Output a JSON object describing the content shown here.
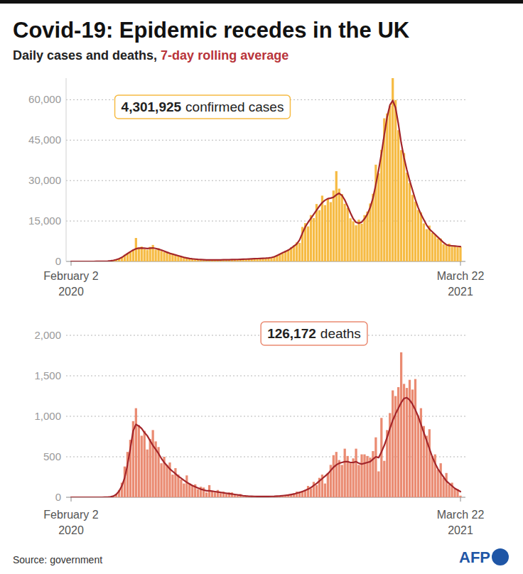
{
  "title": "Covid-19: Epidemic recedes in the UK",
  "subtitle": {
    "text": "Daily cases and deaths,",
    "highlight": "7-day rolling average"
  },
  "source": "Source: government",
  "logo": "AFP",
  "chart_data": [
    {
      "type": "bar",
      "annotation": {
        "label": "4,301,925",
        "text": "confirmed cases"
      },
      "categories": [
        "February 2\n2020",
        null,
        null,
        null,
        null,
        null,
        null,
        null,
        null,
        null,
        null,
        null,
        null,
        null,
        null,
        null,
        null,
        null,
        null,
        null,
        null,
        null,
        null,
        null,
        null,
        null,
        null,
        null,
        null,
        null,
        null,
        null,
        null,
        null,
        null,
        null,
        null,
        null,
        null,
        null,
        null,
        null,
        null,
        null,
        null,
        null,
        null,
        null,
        null,
        null,
        null,
        null,
        null,
        null,
        null,
        null,
        null,
        null,
        null,
        null,
        null,
        null,
        null,
        null,
        null,
        null,
        null,
        null,
        null,
        null,
        null,
        null,
        null,
        null,
        null,
        null,
        null,
        null,
        null,
        null,
        null,
        null,
        null,
        null,
        null,
        null,
        null,
        null,
        null,
        null,
        null,
        null,
        null,
        null,
        null,
        null,
        null,
        null,
        null,
        null,
        null,
        null,
        null,
        null,
        null,
        null,
        null,
        null,
        null,
        null,
        null,
        null,
        null,
        null,
        null,
        null,
        null,
        null,
        null,
        null,
        null,
        null,
        null,
        null,
        null,
        null,
        null,
        null,
        null,
        null,
        null,
        null,
        null,
        null,
        null,
        null,
        null,
        null,
        "March 22\n2021"
      ],
      "series": [
        {
          "type": "bar",
          "color": "#f6bb44",
          "values": [
            0,
            0,
            0,
            1,
            1,
            0,
            2,
            4,
            6,
            12,
            23,
            40,
            70,
            90,
            260,
            350,
            700,
            1100,
            1400,
            2500,
            3000,
            3700,
            4400,
            8700,
            5200,
            5500,
            4600,
            4300,
            5400,
            6100,
            4400,
            4900,
            3900,
            3500,
            3600,
            2700,
            3000,
            2300,
            2200,
            1600,
            1700,
            1200,
            1200,
            900,
            900,
            700,
            750,
            580,
            620,
            520,
            600,
            520,
            620,
            540,
            650,
            580,
            700,
            640,
            750,
            690,
            800,
            760,
            900,
            820,
            1000,
            950,
            1100,
            1000,
            1250,
            1100,
            1400,
            1300,
            1900,
            2400,
            2900,
            3000,
            4000,
            4300,
            5300,
            6000,
            7100,
            6900,
            12800,
            14200,
            13000,
            17200,
            16100,
            21300,
            19000,
            24400,
            20900,
            23200,
            22000,
            26300,
            33500,
            27000,
            25000,
            21400,
            19900,
            16000,
            14900,
            13400,
            15500,
            14000,
            17200,
            18500,
            21500,
            25100,
            35900,
            32700,
            41400,
            53100,
            54900,
            57700,
            68000,
            59900,
            48700,
            41300,
            40200,
            32900,
            29100,
            24700,
            22200,
            19100,
            18200,
            14100,
            12000,
            13300,
            10600,
            9900,
            8500,
            8500,
            6400,
            6000,
            6600,
            5500,
            5900,
            5300,
            5400
          ]
        },
        {
          "type": "line",
          "color": "#a3262b",
          "values": [
            0,
            0,
            0,
            1,
            1,
            1,
            2,
            3,
            5,
            10,
            20,
            35,
            60,
            110,
            220,
            400,
            650,
            1000,
            1500,
            2200,
            2900,
            3600,
            4200,
            4700,
            4900,
            5000,
            4900,
            4800,
            4900,
            5000,
            4800,
            4500,
            4200,
            3800,
            3400,
            3000,
            2700,
            2400,
            2100,
            1800,
            1500,
            1300,
            1100,
            950,
            850,
            750,
            680,
            620,
            580,
            560,
            550,
            560,
            570,
            580,
            600,
            620,
            650,
            680,
            700,
            730,
            760,
            800,
            850,
            900,
            950,
            1000,
            1050,
            1100,
            1150,
            1200,
            1300,
            1450,
            1700,
            2200,
            2700,
            3200,
            3700,
            4200,
            4900,
            5700,
            6500,
            8000,
            10500,
            12800,
            14500,
            16000,
            17500,
            19000,
            20500,
            21800,
            22700,
            23300,
            23500,
            23800,
            24700,
            25300,
            24500,
            22800,
            20500,
            18000,
            15800,
            14500,
            14200,
            14600,
            15800,
            17500,
            20000,
            23500,
            28500,
            34000,
            40000,
            47000,
            53500,
            58000,
            59700,
            57000,
            51000,
            44000,
            38500,
            34000,
            30000,
            26500,
            23000,
            20000,
            17500,
            15500,
            13500,
            12000,
            11000,
            10000,
            9000,
            8000,
            7000,
            6200,
            5900,
            5800,
            5700,
            5600,
            5500
          ]
        }
      ],
      "ylim": [
        0,
        68000
      ],
      "yticks": [
        0,
        {
          "value": 15000,
          "label": "15,000"
        },
        {
          "value": 30000,
          "label": "30,000"
        },
        {
          "value": 45000,
          "label": "45,000"
        },
        {
          "value": 60000,
          "label": "60,000"
        }
      ],
      "grid": true
    },
    {
      "type": "bar",
      "annotation": {
        "label": "126,172",
        "text": "deaths"
      },
      "categories": [
        "February 2\n2020",
        null,
        null,
        null,
        null,
        null,
        null,
        null,
        null,
        null,
        null,
        null,
        null,
        null,
        null,
        null,
        null,
        null,
        null,
        null,
        null,
        null,
        null,
        null,
        null,
        null,
        null,
        null,
        null,
        null,
        null,
        null,
        null,
        null,
        null,
        null,
        null,
        null,
        null,
        null,
        null,
        null,
        null,
        null,
        null,
        null,
        null,
        null,
        null,
        null,
        null,
        null,
        null,
        null,
        null,
        null,
        null,
        null,
        null,
        null,
        null,
        null,
        null,
        null,
        null,
        null,
        null,
        null,
        null,
        null,
        null,
        null,
        null,
        null,
        null,
        null,
        null,
        null,
        null,
        null,
        null,
        null,
        null,
        null,
        null,
        null,
        null,
        null,
        null,
        null,
        null,
        null,
        null,
        null,
        null,
        null,
        null,
        null,
        null,
        null,
        null,
        null,
        null,
        null,
        null,
        null,
        null,
        null,
        null,
        null,
        null,
        null,
        null,
        null,
        null,
        null,
        null,
        null,
        null,
        null,
        null,
        null,
        null,
        null,
        null,
        null,
        null,
        null,
        null,
        null,
        null,
        null,
        null,
        null,
        null,
        null,
        null,
        null,
        "March 22\n2021"
      ],
      "series": [
        {
          "type": "bar",
          "color": "#ea8b72",
          "values": [
            0,
            0,
            0,
            0,
            0,
            0,
            0,
            0,
            0,
            0,
            0,
            1,
            1,
            2,
            6,
            16,
            40,
            90,
            180,
            380,
            560,
            710,
            940,
            1100,
            890,
            760,
            820,
            590,
            720,
            830,
            690,
            620,
            420,
            500,
            400,
            430,
            280,
            360,
            280,
            220,
            170,
            270,
            170,
            150,
            160,
            100,
            130,
            120,
            60,
            150,
            70,
            60,
            90,
            50,
            70,
            40,
            60,
            60,
            30,
            20,
            40,
            15,
            20,
            10,
            14,
            8,
            12,
            10,
            6,
            14,
            8,
            11,
            14,
            9,
            20,
            27,
            20,
            37,
            30,
            50,
            70,
            60,
            80,
            90,
            140,
            110,
            190,
            150,
            240,
            280,
            170,
            300,
            400,
            520,
            560,
            460,
            400,
            600,
            510,
            420,
            480,
            600,
            400,
            530,
            530,
            510,
            490,
            570,
            740,
            320,
            980,
            450,
            830,
            1040,
            1320,
            1250,
            1360,
            1790,
            1400,
            1350,
            1450,
            1330,
            1460,
            1010,
            1100,
            880,
            760,
            840,
            510,
            530,
            340,
            420,
            240,
            300,
            160,
            180,
            110,
            100,
            20
          ]
        },
        {
          "type": "line",
          "color": "#a3262b",
          "values": [
            0,
            0,
            0,
            0,
            0,
            0,
            0,
            0,
            0,
            0,
            0,
            0,
            1,
            2,
            5,
            14,
            35,
            75,
            140,
            240,
            400,
            600,
            820,
            900,
            880,
            850,
            800,
            760,
            700,
            640,
            590,
            540,
            480,
            430,
            390,
            350,
            320,
            290,
            260,
            235,
            210,
            185,
            165,
            145,
            130,
            115,
            100,
            90,
            80,
            80,
            75,
            70,
            65,
            60,
            55,
            50,
            45,
            40,
            35,
            30,
            25,
            20,
            16,
            13,
            12,
            11,
            10,
            10,
            10,
            10,
            10,
            11,
            12,
            14,
            16,
            20,
            24,
            28,
            34,
            40,
            50,
            60,
            70,
            85,
            100,
            120,
            145,
            170,
            200,
            230,
            260,
            290,
            330,
            370,
            400,
            420,
            430,
            440,
            440,
            430,
            430,
            440,
            420,
            410,
            420,
            430,
            440,
            470,
            500,
            490,
            560,
            640,
            740,
            850,
            950,
            1030,
            1100,
            1170,
            1220,
            1230,
            1200,
            1150,
            1080,
            1000,
            900,
            800,
            700,
            600,
            500,
            420,
            350,
            300,
            250,
            200,
            170,
            140,
            110,
            90,
            70
          ]
        }
      ],
      "ylim": [
        0,
        2000
      ],
      "yticks": [
        0,
        500,
        {
          "value": 1000,
          "label": "1,000"
        },
        {
          "value": 1500,
          "label": "1,500"
        },
        {
          "value": 2000,
          "label": "2,000"
        }
      ],
      "grid": true
    }
  ]
}
